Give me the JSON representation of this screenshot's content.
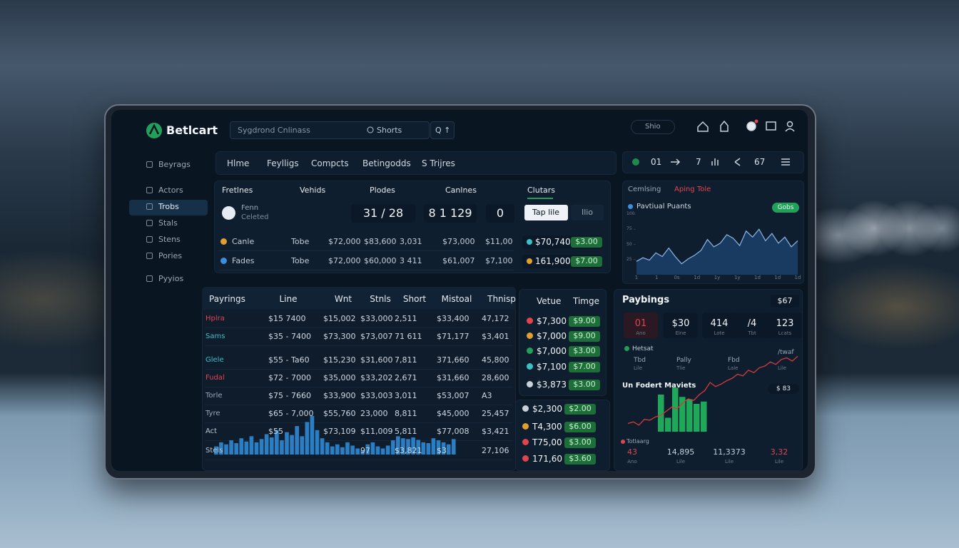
{
  "header": {
    "logo": "Betlcart",
    "search_placeholder": "Sygdrond Cnlinass",
    "search_button": "Shorts",
    "quick_search": "Q ↑",
    "region": "Shio"
  },
  "sidebar": [
    "Beyrags",
    "Actors",
    "Trobs",
    "Stals",
    "Stens",
    "Pories",
    "Pyyios"
  ],
  "tabs": [
    "Hlme",
    "Feylligs",
    "Compcts",
    "Betingodds",
    "S Trijres"
  ],
  "toolbar": [
    "01",
    "7",
    "67"
  ],
  "matches": {
    "headers": [
      "Fretlnes",
      "Vehids",
      "Plodes",
      "Canlnes",
      "Clutars"
    ],
    "featured": {
      "name": "Fenn",
      "subtitle": "Celeted",
      "score": "31 / 28",
      "line": "8 1 129",
      "count": "0",
      "primary_button": "Tap lile",
      "secondary_button": "Ilio"
    },
    "rows": [
      [
        "Canle",
        "Tobe",
        "$72,000",
        "$83,600",
        "3,031",
        "$73,000",
        "$11,00",
        "$70,740",
        "$3.00"
      ],
      [
        "Fades",
        "Tobe",
        "$72,000",
        "$60,000",
        "3 411",
        "$61,007",
        "$7,100",
        "161,900",
        "$7.00"
      ]
    ]
  },
  "popular": {
    "tabs": [
      "Cemlsing",
      "Aping Tole"
    ],
    "legend": "Pavtiual Puants",
    "badge": "Gobs",
    "ylim": [
      0,
      100
    ],
    "yticks": [
      25,
      50,
      75,
      100
    ],
    "x_labels": [
      "1",
      "1",
      "0s",
      "1d",
      "1y",
      "1y",
      "1d",
      "1d",
      "1d"
    ],
    "values": [
      22,
      28,
      24,
      36,
      30,
      44,
      30,
      18,
      26,
      32,
      40,
      58,
      46,
      52,
      66,
      60,
      48,
      72,
      62,
      75,
      56,
      68,
      52,
      62,
      46,
      56
    ]
  },
  "payings": {
    "headers": [
      "Payrings",
      "Line",
      "Wnt",
      "Stnls",
      "Short",
      "Mistoal",
      "Thnisp"
    ],
    "rows": [
      [
        "Hplra",
        "$15  7400",
        "$15,002",
        "$33,000",
        "2,511",
        "$33,400",
        "47,172"
      ],
      [
        "Sams",
        "$35 - 7400",
        "$73,300",
        "$73,007",
        "71 611",
        "$71,177",
        "$3,401"
      ],
      [
        "Glele",
        "$55 - Ta60",
        "$15,230",
        "$31,600",
        "7,811",
        "371,660",
        "45,800"
      ],
      [
        "Fudal",
        "$72 - 7000",
        "$35,000",
        "$33,202",
        "2,671",
        "$31,660",
        "28,600"
      ],
      [
        "Torle",
        "$75 - 7660",
        "$33,900",
        "$33,003",
        "3,011",
        "$53,007",
        "A3"
      ],
      [
        "Tyre",
        "$65 - 7,000",
        "$55,760",
        "23,000",
        "8,811",
        "$45,000",
        "25,457"
      ],
      [
        "Act",
        "$55",
        "$73,109",
        "$11,009",
        "5,811",
        "$77,008",
        "$3,421"
      ],
      [
        "Stels",
        "97",
        "$3,821",
        "$3",
        "27,106"
      ]
    ]
  },
  "odds": {
    "headers": [
      "Vetue",
      "Timge"
    ],
    "rows": [
      [
        "$7,300",
        "$9.00"
      ],
      [
        "$7,000",
        "$9.00"
      ],
      [
        "$7,000",
        "$3.00"
      ],
      [
        "$7,100",
        "$7.00"
      ],
      [
        "$3,873",
        "$3.00"
      ]
    ],
    "extra_rows": [
      [
        "$2,300",
        "$2.00"
      ],
      [
        "T4,300",
        "$6.00"
      ],
      [
        "T75,00",
        "$3.00"
      ],
      [
        "171,60",
        "$3.60"
      ]
    ]
  },
  "volume": {
    "ylim": [
      0,
      100
    ],
    "values": [
      20,
      30,
      25,
      35,
      28,
      40,
      32,
      45,
      30,
      38,
      50,
      42,
      60,
      35,
      55,
      48,
      70,
      45,
      80,
      95,
      60,
      40,
      30,
      20,
      25,
      18,
      30,
      22,
      15,
      10,
      25,
      30,
      20,
      15,
      22,
      35,
      45,
      40,
      38,
      42,
      36,
      30,
      28,
      40,
      35,
      30,
      25,
      38
    ]
  },
  "summary": {
    "title": "Paybings",
    "badge": "$67",
    "stats": [
      {
        "value": "01",
        "label": "Ano"
      },
      {
        "value": "$30",
        "label": "Elne"
      },
      {
        "value": "414",
        "label": "Lote"
      },
      {
        "value": "/4",
        "label": "Tbt"
      },
      {
        "value": "123",
        "label": "Lcats"
      }
    ],
    "legend": "Hetsat",
    "columns": [
      {
        "value": "Tbd",
        "label": "Lile"
      },
      {
        "value": "Pally",
        "label": "Tlie"
      },
      {
        "value": "Fbd",
        "label": "Lale"
      },
      {
        "value": "/twaf",
        "label": "Lile"
      }
    ],
    "subtitle": "Un Fodert Maviets",
    "subtitle_badge": "$ 83",
    "trend": {
      "ylim": [
        0,
        100
      ],
      "values": [
        10,
        12,
        8,
        15,
        14,
        18,
        20,
        25,
        30,
        28,
        35,
        40,
        38,
        45,
        50,
        60,
        55,
        58,
        62,
        65,
        70,
        68,
        75,
        72,
        78,
        80,
        85,
        82,
        88,
        90,
        86,
        92
      ]
    },
    "bars": {
      "ylim": [
        0,
        100
      ],
      "values": [
        80,
        30,
        95,
        75,
        70,
        60,
        65
      ]
    },
    "footer_title": "Totlaarg",
    "footer": [
      {
        "value": "43",
        "label": "Ano"
      },
      {
        "value": "14,895",
        "label": "Lile"
      },
      {
        "value": "11,3373",
        "label": "Lile"
      },
      {
        "value": "3,32",
        "label": "Lile"
      }
    ]
  }
}
